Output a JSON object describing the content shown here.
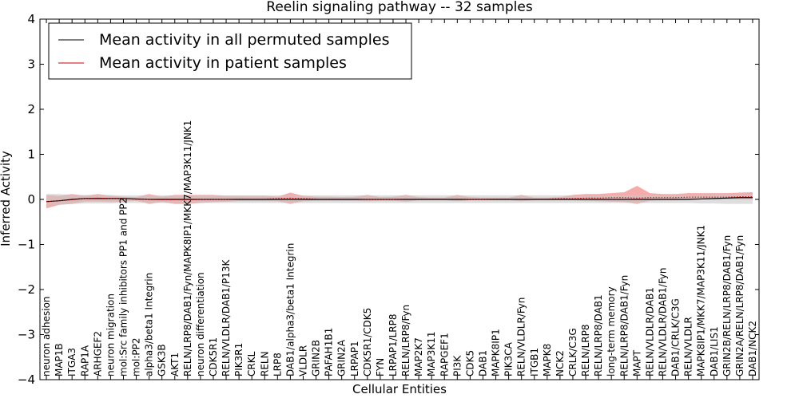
{
  "chart_data": {
    "type": "line",
    "title": "Reelin signaling pathway -- 32 samples",
    "xlabel": "Cellular Entities",
    "ylabel": "Inferred Activity",
    "ylim": [
      -4,
      4
    ],
    "yticks": [
      4,
      3,
      2,
      1,
      0,
      -1,
      -2,
      -3,
      -4
    ],
    "ytick_labels": [
      "4",
      "3",
      "2",
      "1",
      "0",
      "−1",
      "−2",
      "−3",
      "−4"
    ],
    "grid": false,
    "legend_position": "top-left",
    "categories": [
      "neuron adhesion",
      "MAP1B",
      "ITGA3",
      "RAP1A",
      "ARHGEF2",
      "neuron migration",
      "mol:Src family inhibitors PP1 and PP2",
      "mol:PP2",
      "alpha3/beta1 Integrin",
      "GSK3B",
      "AKT1",
      "RELN/LRP8/DAB1/Fyn/MAPK8IP1/MKK7/MAP3K11/JNK1",
      "neuron differentiation",
      "CDK5R1",
      "RELN/VLDLR/DAB1/P13K",
      "PIK3R1",
      "CRKL",
      "RELN",
      "LRP8",
      "DAB1/alpha3/beta1 Integrin",
      "VLDLR",
      "GRIN2B",
      "PAFAH1B1",
      "GRIN2A",
      "LRPAP1",
      "CDK5R1/CDK5",
      "FYN",
      "LRPAP1/LRP8",
      "RELN/LRP8/Fyn",
      "MAP2K7",
      "MAP3K11",
      "RAPGEF1",
      "PI3K",
      "CDK5",
      "DAB1",
      "MAPK8IP1",
      "PIK3CA",
      "RELN/VLDLR/Fyn",
      "ITGB1",
      "MAPK8",
      "NCK2",
      "CRLK/C3G",
      "RELN/LRP8",
      "RELN/LRP8/DAB1",
      "long-term memory",
      "RELN/LRP8/DAB1/Fyn",
      "MAPT",
      "RELN/VLDLR/DAB1",
      "RELN/VLDLR/DAB1/Fyn",
      "DAB1/CRLK/C3G",
      "RELN/VLDLR",
      "MAPK8IP1/MKK7/MAP3K11/JNK1",
      "DAB1/LIS1",
      "GRIN2B/RELN/LRP8/DAB1/Fyn",
      "GRIN2A/RELN/LRP8/DAB1/Fyn",
      "DAB1/NCK2"
    ],
    "series": [
      {
        "name": "Mean activity in all permuted samples",
        "color": "#000000",
        "style": "solid",
        "values": [
          -0.05,
          -0.03,
          0.0,
          0.02,
          0.02,
          0.02,
          0.02,
          0.01,
          0.0,
          0.0,
          0.0,
          0.0,
          0.0,
          0.0,
          0.0,
          0.0,
          0.0,
          0.0,
          0.0,
          0.0,
          0.0,
          0.0,
          0.0,
          0.0,
          0.0,
          0.0,
          0.0,
          0.0,
          0.0,
          0.0,
          0.0,
          0.0,
          0.0,
          0.0,
          0.0,
          0.0,
          0.0,
          0.0,
          0.0,
          0.0,
          0.0,
          0.0,
          0.0,
          0.0,
          0.0,
          0.0,
          0.0,
          0.0,
          0.0,
          0.0,
          0.0,
          0.01,
          0.02,
          0.03,
          0.04,
          0.04
        ]
      },
      {
        "name": "Mean activity in patient samples",
        "color": "#cc0000",
        "style": "dotted",
        "values": [
          -0.05,
          -0.03,
          -0.01,
          0.02,
          0.03,
          0.02,
          0.02,
          0.0,
          0.0,
          -0.01,
          -0.01,
          -0.01,
          0.0,
          0.0,
          0.0,
          0.01,
          0.01,
          0.01,
          0.02,
          0.03,
          0.02,
          0.01,
          0.01,
          0.01,
          0.01,
          0.0,
          0.0,
          0.0,
          0.01,
          0.01,
          0.01,
          0.01,
          0.01,
          0.0,
          0.0,
          0.01,
          0.01,
          0.01,
          0.01,
          0.01,
          0.02,
          0.02,
          0.03,
          0.03,
          0.04,
          0.04,
          0.03,
          0.04,
          0.04,
          0.04,
          0.05,
          0.05,
          0.05,
          0.05,
          0.06,
          0.06
        ]
      }
    ],
    "bands": [
      {
        "name": "patient range",
        "color": "#ee6666",
        "low": [
          -0.2,
          -0.12,
          -0.1,
          -0.05,
          -0.05,
          -0.06,
          -0.05,
          -0.03,
          -0.1,
          -0.06,
          -0.1,
          -0.1,
          -0.08,
          -0.06,
          -0.05,
          -0.04,
          -0.04,
          -0.04,
          -0.04,
          -0.1,
          -0.04,
          -0.03,
          -0.03,
          -0.03,
          -0.03,
          -0.04,
          -0.03,
          -0.03,
          -0.05,
          -0.02,
          -0.02,
          -0.02,
          -0.04,
          -0.02,
          -0.02,
          -0.02,
          -0.02,
          -0.04,
          -0.02,
          -0.02,
          -0.02,
          -0.02,
          -0.03,
          -0.04,
          -0.05,
          -0.06,
          -0.1,
          -0.03,
          -0.02,
          -0.02,
          -0.01,
          0.0,
          0.0,
          0.0,
          0.0,
          0.0
        ],
        "high": [
          0.1,
          0.08,
          0.12,
          0.08,
          0.12,
          0.08,
          0.06,
          0.05,
          0.12,
          0.06,
          0.1,
          0.1,
          0.1,
          0.1,
          0.08,
          0.08,
          0.08,
          0.08,
          0.06,
          0.15,
          0.08,
          0.06,
          0.06,
          0.05,
          0.06,
          0.1,
          0.05,
          0.06,
          0.1,
          0.05,
          0.04,
          0.04,
          0.1,
          0.05,
          0.04,
          0.04,
          0.04,
          0.1,
          0.04,
          0.04,
          0.05,
          0.1,
          0.12,
          0.12,
          0.14,
          0.16,
          0.3,
          0.14,
          0.12,
          0.12,
          0.14,
          0.14,
          0.14,
          0.14,
          0.15,
          0.16
        ]
      },
      {
        "name": "permuted range",
        "color": "#c8c8c8",
        "low": [
          -0.12,
          -0.12,
          -0.1,
          -0.09,
          -0.09,
          -0.09,
          -0.08,
          -0.08,
          -0.08,
          -0.08,
          -0.08,
          -0.08,
          -0.08,
          -0.08,
          -0.08,
          -0.08,
          -0.08,
          -0.08,
          -0.08,
          -0.08,
          -0.08,
          -0.08,
          -0.08,
          -0.08,
          -0.08,
          -0.08,
          -0.08,
          -0.08,
          -0.08,
          -0.08,
          -0.08,
          -0.08,
          -0.08,
          -0.08,
          -0.08,
          -0.08,
          -0.08,
          -0.08,
          -0.08,
          -0.08,
          -0.08,
          -0.08,
          -0.08,
          -0.08,
          -0.08,
          -0.08,
          -0.08,
          -0.08,
          -0.08,
          -0.08,
          -0.08,
          -0.09,
          -0.09,
          -0.1,
          -0.1,
          -0.1
        ],
        "high": [
          0.12,
          0.12,
          0.1,
          0.1,
          0.1,
          0.1,
          0.09,
          0.09,
          0.09,
          0.09,
          0.09,
          0.09,
          0.09,
          0.09,
          0.09,
          0.09,
          0.09,
          0.09,
          0.09,
          0.09,
          0.09,
          0.09,
          0.09,
          0.09,
          0.09,
          0.09,
          0.09,
          0.09,
          0.09,
          0.09,
          0.09,
          0.09,
          0.09,
          0.09,
          0.09,
          0.09,
          0.09,
          0.09,
          0.09,
          0.09,
          0.09,
          0.09,
          0.09,
          0.09,
          0.09,
          0.09,
          0.09,
          0.09,
          0.09,
          0.09,
          0.09,
          0.1,
          0.1,
          0.11,
          0.11,
          0.11
        ]
      }
    ]
  }
}
